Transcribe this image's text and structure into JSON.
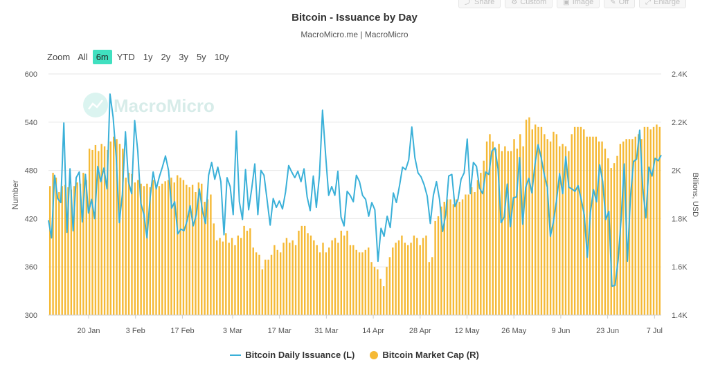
{
  "toolbar": {
    "items": [
      {
        "label": "Share",
        "icon": "share-icon"
      },
      {
        "label": "Custom",
        "icon": "custom-icon"
      },
      {
        "label": "Image",
        "icon": "image-icon"
      },
      {
        "label": "Off",
        "icon": "off-icon"
      },
      {
        "label": "Enlarge",
        "icon": "enlarge-icon"
      }
    ]
  },
  "range_selector": {
    "zoom_label": "Zoom",
    "options": [
      "All",
      "6m",
      "YTD",
      "1y",
      "2y",
      "3y",
      "5y",
      "10y"
    ],
    "selected": "6m"
  },
  "watermark": "MacroMicro",
  "colors": {
    "issuance": "#3ab0d8",
    "market_cap": "#f5b935",
    "range_active": "#40e0c0"
  },
  "chart_data": {
    "type": "bar+line",
    "title": "Bitcoin - Issuance by Day",
    "subtitle": "MacroMicro.me | MacroMicro",
    "ylabel_left": "Number",
    "ylabel_right": "Billions, USD",
    "ylim_left": [
      300,
      600
    ],
    "yticks_left": [
      300,
      360,
      420,
      480,
      540,
      600
    ],
    "ylim_right": [
      1400,
      2400
    ],
    "ytick_labels_right": [
      "1.4K",
      "1.6K",
      "1.8K",
      "2K",
      "2.2K",
      "2.4K"
    ],
    "yticks_right": [
      1400,
      1600,
      1800,
      2000,
      2200,
      2400
    ],
    "x_start": "2024-01-08",
    "x_end": "2024-07-09",
    "x_ticks": [
      {
        "label": "20 Jan",
        "date": "2024-01-20"
      },
      {
        "label": "3 Feb",
        "date": "2024-02-03"
      },
      {
        "label": "17 Feb",
        "date": "2024-02-17"
      },
      {
        "label": "3 Mar",
        "date": "2024-03-03"
      },
      {
        "label": "17 Mar",
        "date": "2024-03-17"
      },
      {
        "label": "31 Mar",
        "date": "2024-03-31"
      },
      {
        "label": "14 Apr",
        "date": "2024-04-14"
      },
      {
        "label": "28 Apr",
        "date": "2024-04-28"
      },
      {
        "label": "12 May",
        "date": "2024-05-12"
      },
      {
        "label": "26 May",
        "date": "2024-05-26"
      },
      {
        "label": "9 Jun",
        "date": "2024-06-09"
      },
      {
        "label": "23 Jun",
        "date": "2024-06-23"
      },
      {
        "label": "7 Jul",
        "date": "2024-07-07"
      }
    ],
    "grid": true,
    "legend_position": "bottom-center",
    "series": [
      {
        "name": "Bitcoin Daily Issuance (L)",
        "type": "line",
        "axis": "left",
        "values": [
          418,
          396,
          474,
          445,
          440,
          539,
          403,
          482,
          405,
          471,
          478,
          416,
          475,
          427,
          444,
          420,
          485,
          466,
          483,
          457,
          575,
          546,
          497,
          415,
          450,
          528,
          466,
          451,
          542,
          504,
          439,
          425,
          396,
          446,
          478,
          457,
          472,
          484,
          498,
          480,
          433,
          441,
          401,
          407,
          405,
          417,
          436,
          411,
          425,
          457,
          430,
          414,
          474,
          490,
          469,
          484,
          466,
          400,
          471,
          460,
          425,
          529,
          441,
          419,
          481,
          431,
          457,
          488,
          425,
          480,
          474,
          443,
          412,
          445,
          434,
          442,
          432,
          453,
          486,
          478,
          471,
          479,
          466,
          482,
          447,
          430,
          473,
          434,
          474,
          555,
          499,
          449,
          460,
          449,
          479,
          422,
          411,
          454,
          449,
          441,
          474,
          466,
          449,
          444,
          423,
          440,
          431,
          367,
          408,
          398,
          423,
          409,
          452,
          440,
          461,
          484,
          481,
          493,
          534,
          496,
          477,
          472,
          462,
          448,
          414,
          449,
          466,
          444,
          404,
          425,
          473,
          475,
          435,
          444,
          469,
          477,
          519,
          451,
          490,
          485,
          458,
          451,
          478,
          475,
          504,
          508,
          482,
          415,
          422,
          463,
          410,
          446,
          447,
          496,
          413,
          459,
          470,
          452,
          488,
          512,
          496,
          475,
          459,
          398,
          416,
          443,
          476,
          451,
          497,
          459,
          457,
          454,
          461,
          444,
          425,
          372,
          428,
          456,
          441,
          487,
          466,
          419,
          429,
          336,
          337,
          368,
          421,
          488,
          367,
          446,
          491,
          494,
          530,
          458,
          421,
          484,
          473,
          495,
          492,
          499
        ]
      },
      {
        "name": "Bitcoin Market Cap (R)",
        "type": "bar",
        "axis": "right",
        "values": [
          1935,
          1990,
          1970,
          1910,
          1935,
          1940,
          1930,
          1920,
          1935,
          1950,
          1945,
          1990,
          1960,
          2090,
          2085,
          2105,
          2080,
          2110,
          2100,
          2085,
          2120,
          2140,
          2130,
          2110,
          2090,
          1970,
          1990,
          1985,
          1950,
          1960,
          1945,
          1935,
          1945,
          1930,
          1960,
          1940,
          1935,
          1945,
          1955,
          1960,
          1970,
          1950,
          1980,
          1970,
          1960,
          1940,
          1930,
          1940,
          1910,
          1950,
          1945,
          1870,
          1880,
          1900,
          1780,
          1710,
          1720,
          1705,
          1740,
          1700,
          1720,
          1690,
          1730,
          1720,
          1770,
          1750,
          1760,
          1680,
          1660,
          1650,
          1590,
          1630,
          1630,
          1650,
          1690,
          1670,
          1660,
          1700,
          1720,
          1700,
          1710,
          1690,
          1750,
          1770,
          1770,
          1740,
          1730,
          1710,
          1690,
          1660,
          1700,
          1660,
          1680,
          1710,
          1720,
          1700,
          1750,
          1730,
          1750,
          1690,
          1690,
          1670,
          1660,
          1660,
          1670,
          1680,
          1620,
          1600,
          1590,
          1550,
          1520,
          1600,
          1640,
          1680,
          1700,
          1710,
          1730,
          1700,
          1690,
          1700,
          1730,
          1720,
          1690,
          1720,
          1730,
          1620,
          1640,
          1790,
          1810,
          1850,
          1870,
          1880,
          1880,
          1860,
          1880,
          1870,
          1880,
          1900,
          1900,
          1930,
          1910,
          1960,
          1990,
          2040,
          2120,
          2150,
          2120,
          2090,
          2110,
          2080,
          2100,
          2080,
          2080,
          2130,
          2090,
          2150,
          2100,
          2210,
          2220,
          2170,
          2190,
          2180,
          2180,
          2150,
          2130,
          2120,
          2160,
          2150,
          2100,
          2110,
          2100,
          2080,
          2150,
          2180,
          2180,
          2180,
          2170,
          2140,
          2140,
          2140,
          2140,
          2120,
          2120,
          2090,
          2050,
          2010,
          2030,
          2060,
          2110,
          2120,
          2130,
          2130,
          2130,
          2140,
          2150,
          2130,
          2180,
          2180,
          2170,
          2180,
          2190,
          2180
        ]
      }
    ]
  }
}
